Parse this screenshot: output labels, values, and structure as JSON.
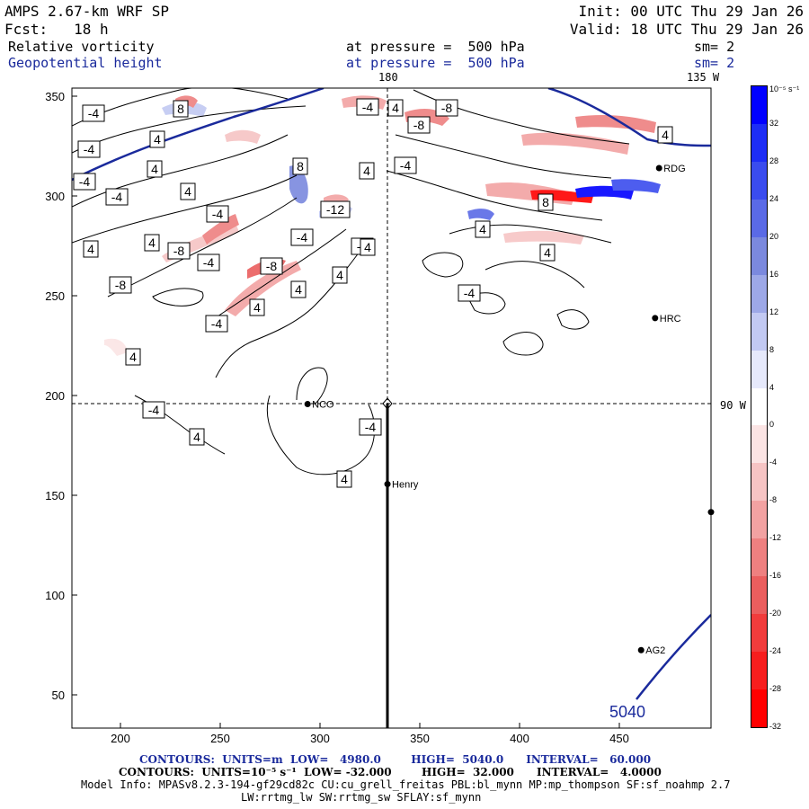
{
  "header": {
    "title": "AMPS 2.67-km WRF SP",
    "init": "Init: 00 UTC Thu 29 Jan 26",
    "fcst": "Fcst:   18 h",
    "valid": "Valid: 18 UTC Thu 29 Jan 26",
    "field1_name": "Relative vorticity",
    "field1_level": "at pressure =  500 hPa",
    "field1_smooth": "sm= 2",
    "field2_name": "Geopotential height",
    "field2_level": "at pressure =  500 hPa",
    "field2_smooth": "sm= 2"
  },
  "map": {
    "longitude_labels": {
      "top_180": "180",
      "top_135w": "135 W",
      "right_90w": "90 W"
    },
    "y_ticks": [
      "350",
      "300",
      "250",
      "200",
      "150",
      "100",
      "50"
    ],
    "x_ticks": [
      "200",
      "250",
      "300",
      "350",
      "400",
      "450"
    ],
    "stations": [
      {
        "name": "RDG",
        "grid_x": 469,
        "grid_y": 313
      },
      {
        "name": "HRC",
        "grid_x": 467,
        "grid_y": 238
      },
      {
        "name": "NCO",
        "grid_x": 293,
        "grid_y": 195
      },
      {
        "name": "Henry",
        "grid_x": 333,
        "grid_y": 155
      },
      {
        "name": "AG2",
        "grid_x": 460,
        "grid_y": 72
      },
      {
        "name": "",
        "grid_x": 495,
        "grid_y": 141
      }
    ],
    "height_contour_label": "5040",
    "vorticity_labels": [
      "-4",
      "8",
      "-4",
      "-8",
      "4",
      "-4",
      "-8",
      "-4",
      "8",
      "4",
      "-4",
      "4",
      "-4",
      "4",
      "-4",
      "-12",
      "8",
      "-4",
      "4",
      "4",
      "-8",
      "-4",
      "-4",
      "-8",
      "4",
      "4",
      "4",
      "4",
      "4",
      "-4",
      "-8",
      "4",
      "-4",
      "4",
      "-4",
      "-4",
      "4",
      "4",
      "4",
      "4"
    ]
  },
  "colorbar": {
    "units": "10⁻⁵ s⁻¹",
    "labels": [
      "32",
      "28",
      "24",
      "20",
      "16",
      "12",
      "8",
      "4",
      "0",
      "-4",
      "-8",
      "-12",
      "-16",
      "-20",
      "-24",
      "-28",
      "-32"
    ],
    "colors": [
      "#0000ff",
      "#1d2df5",
      "#3a4cee",
      "#5a6ae6",
      "#7b89de",
      "#9da8e7",
      "#c2c9f2",
      "#e6e9fb",
      "#ffffff",
      "#fbe4e4",
      "#f6c4c4",
      "#f2a2a2",
      "#ee8080",
      "#ea5e5e",
      "#f13c3c",
      "#f71e1e",
      "#ff0000"
    ]
  },
  "footer": {
    "contours1": "CONTOURS:  UNITS=m  LOW=   4980.0        HIGH=  5040.0      INTERVAL=   60.000",
    "contours2": "CONTOURS:  UNITS=10⁻⁵ s⁻¹  LOW= -32.000        HIGH=  32.000      INTERVAL=   4.0000",
    "model_info": "Model Info: MPASv8.2.3-194-gf29cd82c CU:cu_grell_freitas PBL:bl_mynn MP:mp_thompson SF:sf_noahmp 2.7",
    "model_info2": "LW:rrtmg_lw SW:rrtmg_sw SFLAY:sf_mynn"
  },
  "colors": {
    "height_contour": "#1a2a9c",
    "title_blue": "#1a2a9c"
  }
}
